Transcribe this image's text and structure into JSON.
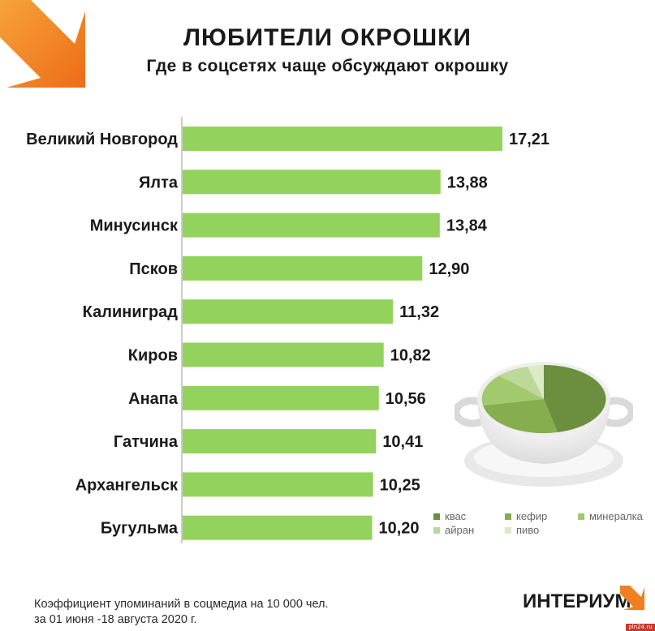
{
  "header": {
    "title": "ЛЮБИТЕЛИ ОКРОШКИ",
    "subtitle": "Где в соцсетях чаще обсуждают окрошку"
  },
  "chart_data": {
    "type": "bar",
    "orientation": "horizontal",
    "categories": [
      "Великий Новгород",
      "Ялта",
      "Минусинск",
      "Псков",
      "Калиниград",
      "Киров",
      "Анапа",
      "Гатчина",
      "Архангельск",
      "Бугульма"
    ],
    "values": [
      17.21,
      13.88,
      13.84,
      12.9,
      11.32,
      10.82,
      10.56,
      10.41,
      10.25,
      10.2
    ],
    "value_labels": [
      "17,21",
      "13,88",
      "13,84",
      "12,90",
      "11,32",
      "10,82",
      "10,56",
      "10,41",
      "10,25",
      "10,20"
    ],
    "xlim": [
      0,
      17.21
    ],
    "grid": false,
    "bar_color": "#93d25c"
  },
  "legend": {
    "items": [
      {
        "label": "квас",
        "color": "#6b8f3f"
      },
      {
        "label": "кефир",
        "color": "#86ad4e"
      },
      {
        "label": "минералка",
        "color": "#a3c96f"
      },
      {
        "label": "айран",
        "color": "#bcd99a"
      },
      {
        "label": "пиво",
        "color": "#dbebc6"
      }
    ]
  },
  "footnote": {
    "line1": "Коэффициент упоминаний в соцмедиа на 10 000 чел.",
    "line2": "за 01 июня -18 августа 2020 г."
  },
  "brand": {
    "name": "ИНТЕРИУМ",
    "accent_color": "#f07f1f",
    "site": "pln24.ru"
  }
}
